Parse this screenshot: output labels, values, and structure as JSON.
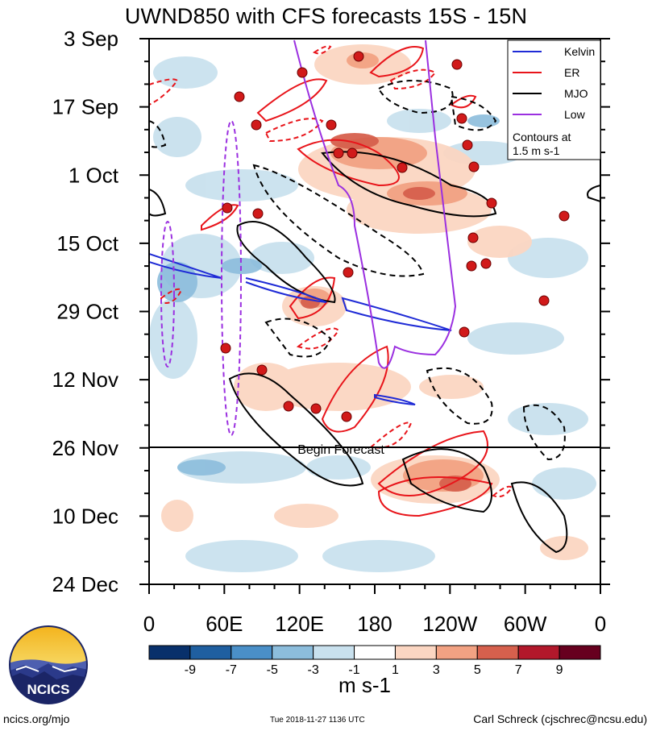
{
  "chart_data": {
    "type": "heatmap",
    "title": "UWND850 with CFS forecasts  15S - 15N",
    "y_ticks": [
      "3 Sep",
      "17 Sep",
      "1 Oct",
      "15 Oct",
      "29 Oct",
      "12 Nov",
      "26 Nov",
      "10 Dec",
      "24 Dec"
    ],
    "x_ticks": [
      "0",
      "60E",
      "120E",
      "180",
      "120W",
      "60W",
      "0"
    ],
    "xlim": [
      0,
      360
    ],
    "ylim": [
      "3 Sep",
      "24 Dec"
    ],
    "colorbar": {
      "labels": [
        "-9",
        "-7",
        "-5",
        "-3",
        "-1",
        "1",
        "3",
        "5",
        "7",
        "9"
      ],
      "colors": [
        "#08306b",
        "#1f5fa0",
        "#4a8fc8",
        "#8cbddc",
        "#c9e1ee",
        "#ffffff",
        "#fbd6c2",
        "#f2a283",
        "#d6604d",
        "#b2182b",
        "#67001f"
      ],
      "units": "m s-1"
    },
    "forecast_label": "Begin Forecast",
    "forecast_start": "26 Nov",
    "legend": {
      "entries": [
        {
          "name": "Kelvin",
          "color": "#1f2bd6"
        },
        {
          "name": "ER",
          "color": "#e8141a"
        },
        {
          "name": "MJO",
          "color": "#000000"
        },
        {
          "name": "Low",
          "color": "#9b30e0"
        }
      ],
      "note_line1": "Contours at",
      "note_line2": "1.5 m s-1",
      "placement": "top-right"
    }
  },
  "footer": {
    "left": "ncics.org/mjo",
    "middle": "Tue 2018-11-27 1136 UTC",
    "right": "Carl Schreck (cjschrec@ncsu.edu)"
  },
  "logo_text": "NCICS"
}
